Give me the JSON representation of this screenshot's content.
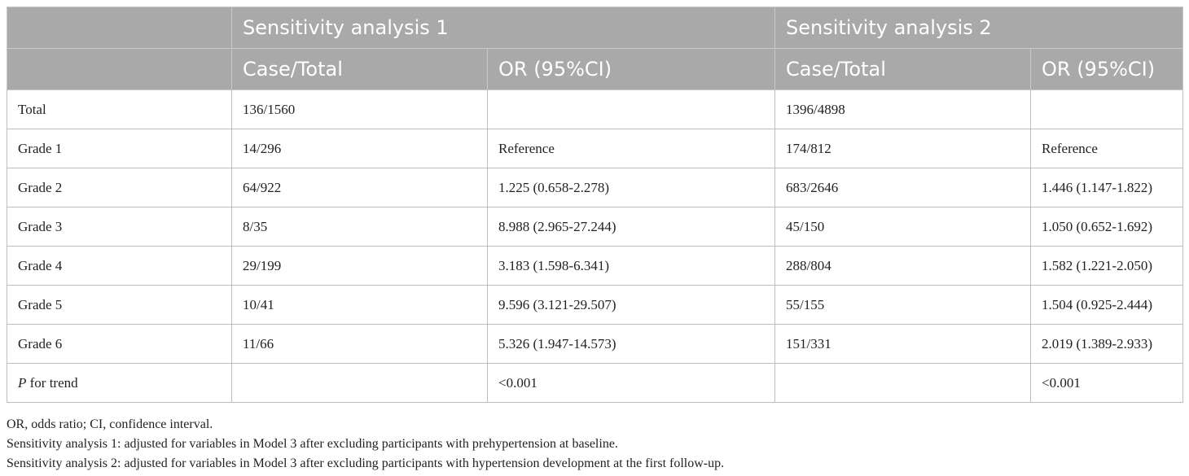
{
  "header": {
    "group1": "Sensitivity analysis 1",
    "group2": "Sensitivity analysis 2",
    "col_case1": "Case/Total",
    "col_or1": "OR (95%CI)",
    "col_case2": "Case/Total",
    "col_or2": "OR (95%CI)"
  },
  "rows": [
    {
      "label": "Total",
      "case1": "136/1560",
      "or1": "",
      "case2": "1396/4898",
      "or2": ""
    },
    {
      "label": "Grade 1",
      "case1": "14/296",
      "or1": "Reference",
      "case2": "174/812",
      "or2": "Reference"
    },
    {
      "label": "Grade 2",
      "case1": "64/922",
      "or1": "1.225 (0.658-2.278)",
      "case2": "683/2646",
      "or2": "1.446 (1.147-1.822)"
    },
    {
      "label": "Grade 3",
      "case1": "8/35",
      "or1": "8.988 (2.965-27.244)",
      "case2": "45/150",
      "or2": "1.050 (0.652-1.692)"
    },
    {
      "label": "Grade 4",
      "case1": "29/199",
      "or1": "3.183 (1.598-6.341)",
      "case2": "288/804",
      "or2": "1.582 (1.221-2.050)"
    },
    {
      "label": "Grade 5",
      "case1": "10/41",
      "or1": "9.596 (3.121-29.507)",
      "case2": "55/155",
      "or2": "1.504 (0.925-2.444)"
    },
    {
      "label": "Grade 6",
      "case1": "11/66",
      "or1": "5.326 (1.947-14.573)",
      "case2": "151/331",
      "or2": "2.019 (1.389-2.933)"
    }
  ],
  "trend": {
    "label_p": "P",
    "label_rest": " for trend",
    "case1": "",
    "or1": "<0.001",
    "case2": "",
    "or2": "<0.001"
  },
  "notes": [
    "OR, odds ratio; CI, confidence interval.",
    "Sensitivity analysis 1: adjusted for variables in Model 3 after excluding participants with prehypertension at baseline.",
    "Sensitivity analysis 2: adjusted for variables in Model 3 after excluding participants with hypertension development at the first follow-up."
  ]
}
